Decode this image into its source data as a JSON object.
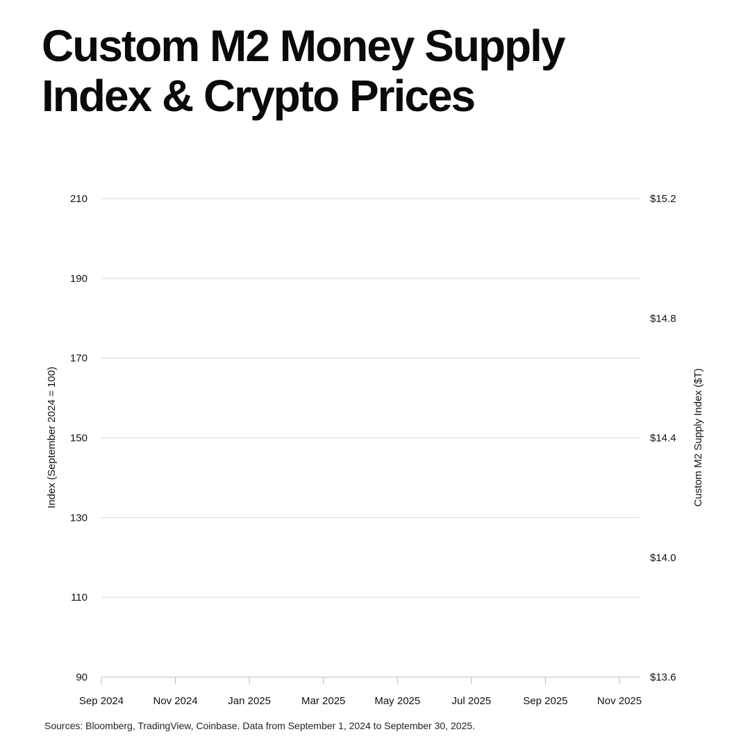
{
  "title_lines": [
    "Custom M2 Money Supply",
    "Index & Crypto Prices"
  ],
  "source": "Sources: Bloomberg, TradingView, Coinbase. Data from September 1, 2024 to September 30, 2025.",
  "colors": {
    "grid": "#cfd8dc",
    "axis": "#b0bec5",
    "text": "#111111"
  },
  "chart_data": {
    "type": "line",
    "title": "Custom M2 Money Supply Index & Crypto Prices",
    "x": [
      "Sep 2024",
      "Nov 2024",
      "Jan 2025",
      "Mar 2025",
      "May 2025",
      "Jul 2025",
      "Sep 2025",
      "Nov 2025"
    ],
    "xticks": [
      "Sep 2024",
      "Nov 2024",
      "Jan 2025",
      "Mar 2025",
      "May 2025",
      "Jul 2025",
      "Sep 2025",
      "Nov 2025"
    ],
    "series": [],
    "ylabel": "Index (September 2024 = 100)",
    "ylim": [
      90,
      210
    ],
    "yticks": [
      90,
      110,
      130,
      150,
      170,
      190,
      210
    ],
    "y2label": "Custom M2 Supply Index ($T)",
    "y2lim": [
      13.6,
      15.2
    ],
    "y2ticks": [
      "$13.6",
      "$14.0",
      "$14.4",
      "$14.8",
      "$15.2"
    ],
    "y2tick_values": [
      13.6,
      14.0,
      14.4,
      14.8,
      15.2
    ],
    "grid": true,
    "legend": "none"
  }
}
